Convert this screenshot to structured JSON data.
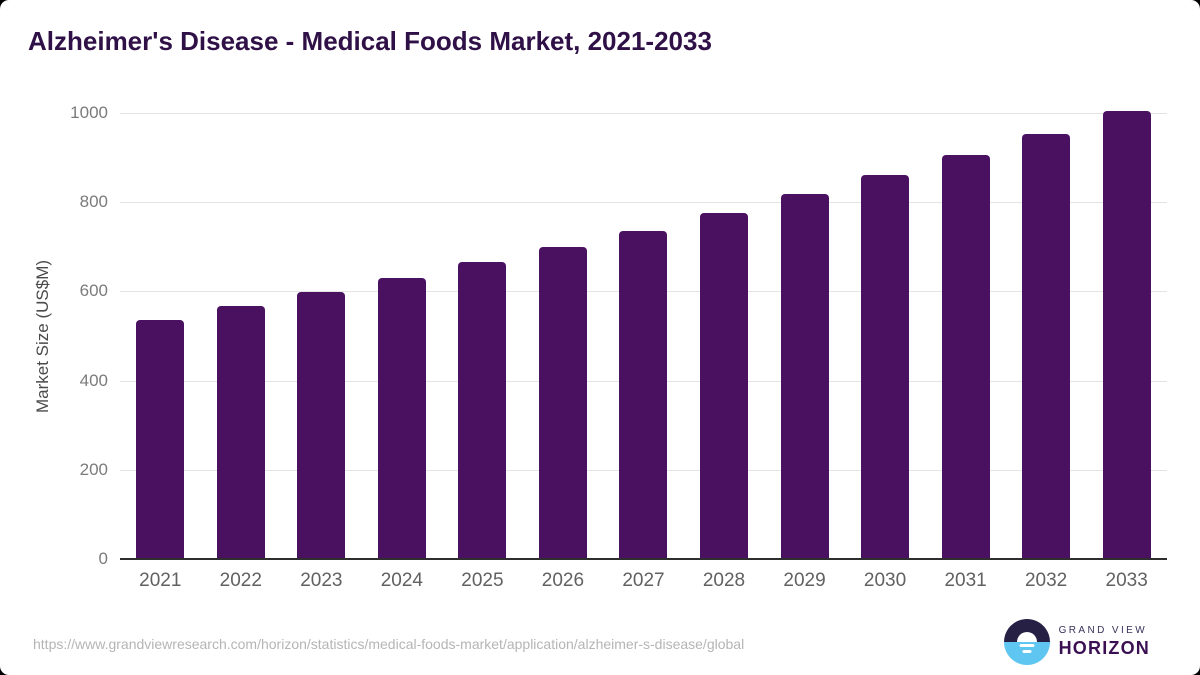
{
  "chart_data": {
    "type": "bar",
    "title": "Alzheimer's Disease - Medical Foods Market, 2021-2033",
    "categories": [
      "2021",
      "2022",
      "2023",
      "2024",
      "2025",
      "2026",
      "2027",
      "2028",
      "2029",
      "2030",
      "2031",
      "2032",
      "2033"
    ],
    "values": [
      536,
      567,
      598,
      631,
      665,
      700,
      736,
      776,
      818,
      861,
      906,
      952,
      1004
    ],
    "xlabel": "",
    "ylabel": "Market Size (US$M)",
    "ylim": [
      0,
      1000
    ],
    "yticks": [
      0,
      200,
      400,
      600,
      800,
      1000
    ],
    "grid": true,
    "legend": "none",
    "bar_color": "#4a1161"
  },
  "colors": {
    "title": "#2f1147",
    "y_tick_label": "#7b7b7b",
    "x_tick_label": "#616161",
    "axis_title": "#4a4a4a",
    "gridline": "#e4e4e4",
    "axis_line": "#2e2e2e",
    "url_text": "#b5b5b5",
    "logo_navy": "#262044",
    "logo_blue": "#5fc6f1",
    "logo_horizon_text": "#3a1053"
  },
  "footer": {
    "source_url": "https://www.grandviewresearch.com/horizon/statistics/medical-foods-market/application/alzheimer-s-disease/global",
    "logo_line1": "GRAND VIEW",
    "logo_line2": "HORIZON"
  }
}
